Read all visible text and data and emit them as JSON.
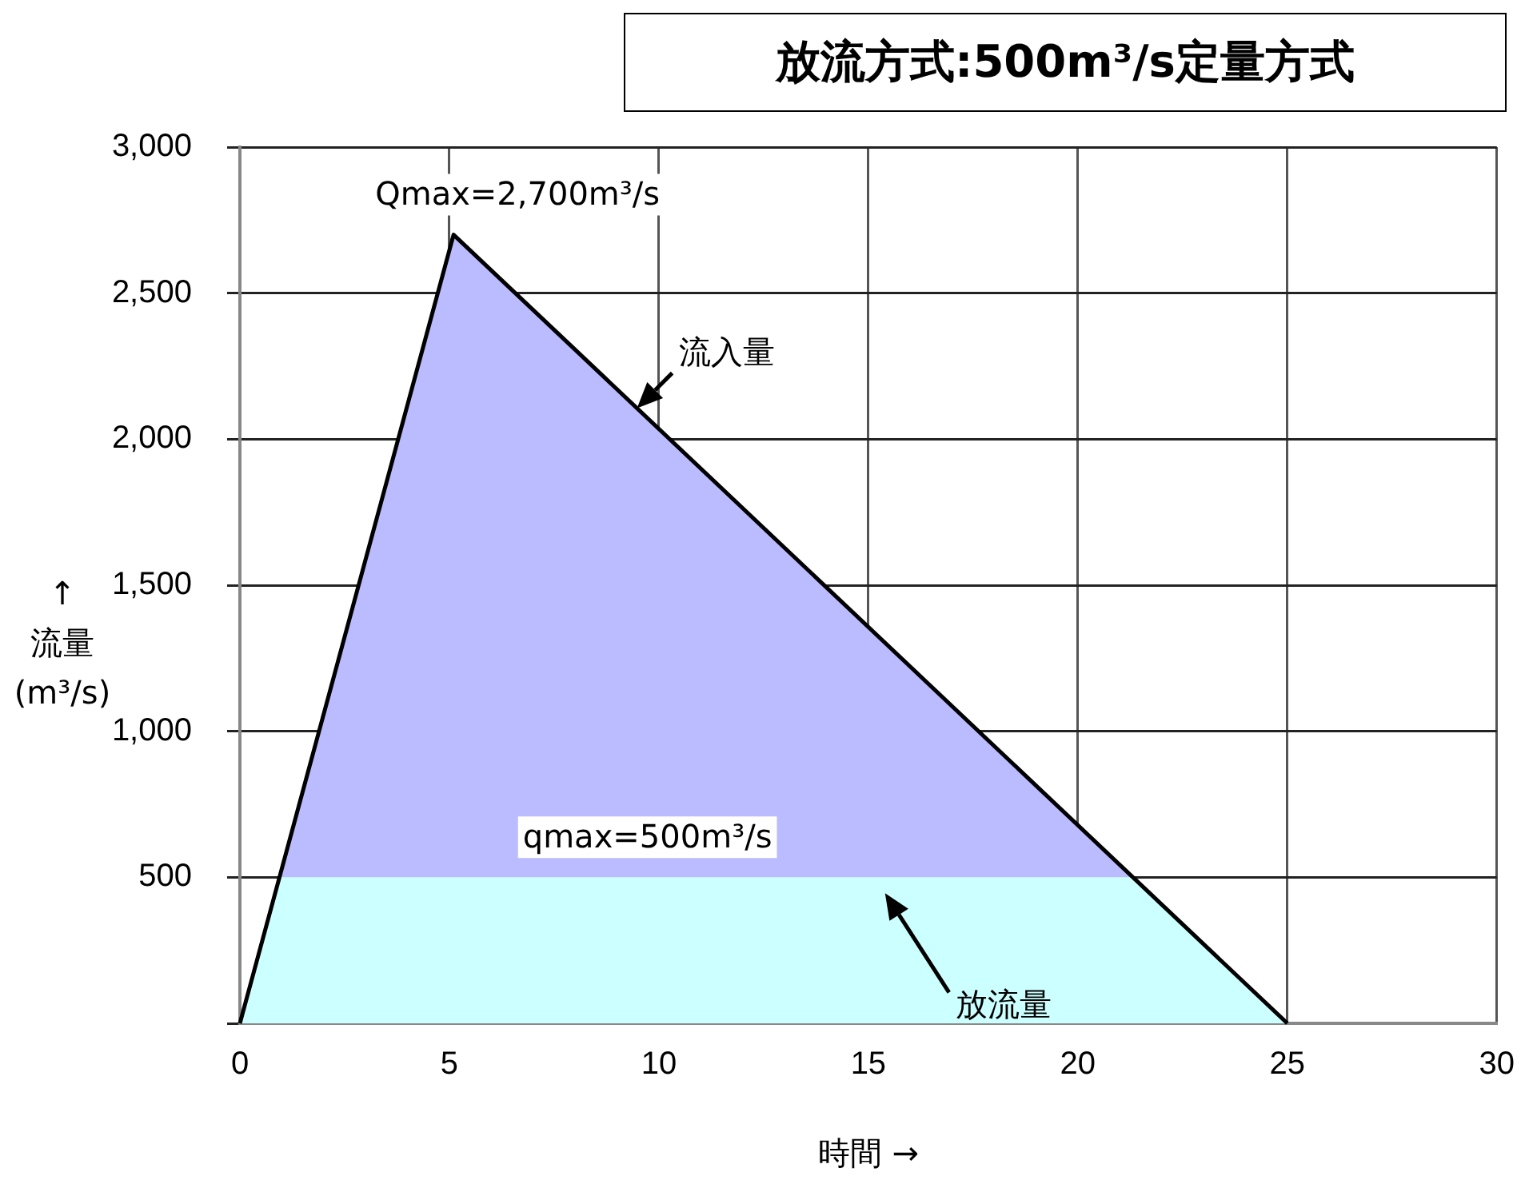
{
  "chart_data": {
    "type": "area",
    "title": "放流方式:500m³/s定量方式",
    "xlabel": "時間 →",
    "ylabel": "↑\n流量\n(m³/s)",
    "series": [
      {
        "name": "流入量",
        "color": "#bbbbff",
        "x": [
          0,
          5.1,
          25
        ],
        "values": [
          0,
          2700,
          0
        ]
      },
      {
        "name": "放流量",
        "color": "#ccffff",
        "x": [
          0,
          0.95,
          21.3,
          25
        ],
        "values": [
          0,
          500,
          500,
          0
        ]
      }
    ],
    "xlim": [
      0,
      30
    ],
    "xticks": [
      0,
      5,
      10,
      15,
      20,
      25,
      30
    ],
    "ylim": [
      0,
      3000
    ],
    "yticks": [
      {
        "value": 0,
        "label": null
      },
      {
        "value": 500,
        "label": "500"
      },
      {
        "value": 1000,
        "label": "1,000"
      },
      {
        "value": 1500,
        "label": "1,500"
      },
      {
        "value": 2000,
        "label": "2,000"
      },
      {
        "value": 2500,
        "label": "2,500"
      },
      {
        "value": 3000,
        "label": "3,000"
      }
    ],
    "grid": true,
    "legend": false,
    "annotations": [
      {
        "text": "Qmax=2,700m³/s",
        "x": 5.1,
        "y": 2700
      },
      {
        "text": "qmax=500m³/s",
        "x": 8.2,
        "y": 500
      }
    ]
  }
}
